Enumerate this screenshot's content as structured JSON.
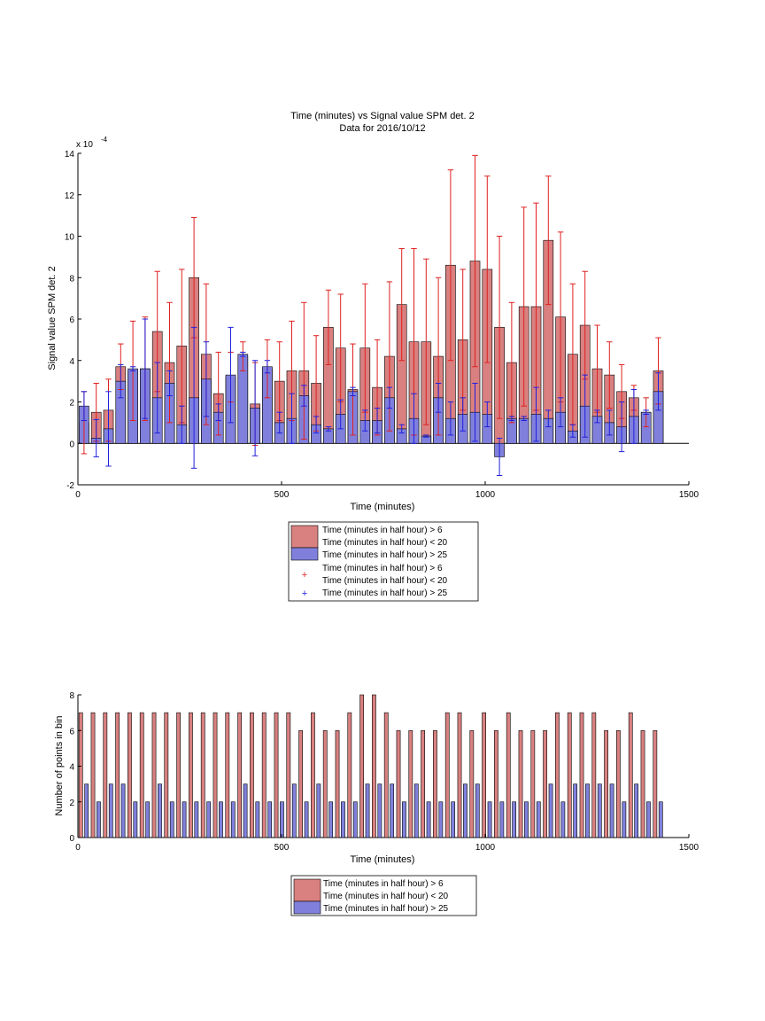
{
  "colors": {
    "red_bar": "#d98080",
    "blue_bar": "#8080dc",
    "red_err": "#e02020",
    "blue_err": "#2020e0"
  },
  "chart_data": [
    {
      "type": "bar",
      "title": "Time (minutes) vs Signal value SPM det. 2",
      "subtitle": "Data for 2016/10/12",
      "xlabel": "Time (minutes)",
      "ylabel": "Signal value SPM det. 2",
      "exponent_label": "x 10",
      "exponent_power": "-4",
      "xlim": [
        0,
        1500
      ],
      "ylim": [
        -2,
        14
      ],
      "x_ticks": [
        0,
        500,
        1000,
        1500
      ],
      "y_ticks": [
        -2,
        0,
        2,
        4,
        6,
        8,
        10,
        12,
        14
      ],
      "legend_placement": "below",
      "legend": [
        "Time (minutes in half hour) > 6",
        "Time (minutes in half hour) < 20",
        "Time (minutes in half hour) > 25",
        "Time (minutes in half hour) > 6",
        "Time (minutes in half hour) < 20",
        "Time (minutes in half hour) > 25"
      ],
      "x": [
        15,
        45,
        75,
        105,
        135,
        165,
        195,
        225,
        255,
        285,
        315,
        345,
        375,
        405,
        435,
        465,
        495,
        525,
        555,
        585,
        615,
        645,
        675,
        705,
        735,
        765,
        795,
        825,
        855,
        885,
        915,
        945,
        975,
        1005,
        1035,
        1065,
        1095,
        1125,
        1155,
        1185,
        1215,
        1245,
        1275,
        1305,
        1335,
        1365,
        1395,
        1425
      ],
      "series": [
        {
          "name": "Time (minutes in half hour) > 6 Time (minutes in half hour) < 20",
          "values": [
            1.0,
            1.5,
            1.6,
            3.7,
            3.5,
            3.6,
            5.4,
            3.9,
            4.7,
            8.0,
            4.3,
            2.4,
            3.2,
            4.2,
            1.9,
            3.6,
            3.0,
            3.5,
            3.5,
            2.9,
            5.6,
            4.6,
            2.6,
            4.6,
            2.7,
            4.2,
            6.7,
            4.9,
            4.9,
            4.2,
            8.6,
            5.0,
            8.8,
            8.4,
            5.6,
            3.9,
            6.6,
            6.6,
            9.8,
            6.1,
            4.3,
            5.7,
            3.6,
            3.3,
            2.5,
            2.2,
            1.5,
            3.5
          ],
          "errors": [
            1.5,
            1.4,
            1.5,
            1.1,
            2.4,
            2.5,
            2.9,
            2.9,
            3.7,
            2.9,
            3.4,
            2.0,
            1.2,
            0.7,
            2.0,
            1.4,
            1.9,
            2.4,
            3.3,
            2.3,
            1.8,
            2.6,
            2.2,
            3.1,
            2.3,
            3.6,
            2.7,
            4.5,
            4.0,
            3.8,
            4.6,
            3.4,
            5.1,
            4.5,
            4.4,
            2.9,
            4.8,
            5.0,
            3.1,
            4.1,
            3.4,
            2.6,
            2.1,
            1.6,
            1.3,
            0.6,
            0.7,
            1.6
          ]
        },
        {
          "name": "Time (minutes in half hour) > 25",
          "values": [
            1.8,
            0.25,
            0.7,
            3.0,
            3.6,
            3.6,
            2.2,
            2.9,
            0.9,
            2.2,
            3.1,
            1.5,
            3.3,
            4.3,
            1.7,
            3.7,
            1.0,
            1.2,
            2.3,
            0.9,
            0.7,
            1.4,
            2.5,
            1.1,
            1.1,
            2.2,
            0.7,
            1.2,
            0.35,
            2.2,
            1.2,
            1.4,
            1.5,
            1.4,
            -0.65,
            1.2,
            1.2,
            1.4,
            1.2,
            1.5,
            0.6,
            1.8,
            1.3,
            1.0,
            0.8,
            1.3,
            1.5,
            2.5
          ],
          "errors": [
            0.7,
            0.9,
            1.8,
            0.8,
            0.1,
            2.4,
            1.7,
            0.6,
            0.9,
            3.4,
            1.8,
            0.4,
            2.3,
            0.1,
            2.3,
            0.3,
            0.5,
            1.2,
            0.5,
            0.4,
            0.1,
            0.7,
            0.2,
            0.5,
            0.6,
            0.5,
            0.2,
            1.2,
            0.05,
            0.7,
            0.8,
            0.8,
            1.4,
            0.6,
            0.9,
            0.1,
            0.1,
            1.3,
            0.4,
            0.7,
            0.3,
            1.5,
            0.3,
            0.6,
            1.2,
            1.3,
            0.1,
            0.9
          ]
        }
      ]
    },
    {
      "type": "bar",
      "xlabel": "Time (minutes)",
      "ylabel": "Number of points in bin",
      "xlim": [
        0,
        1500
      ],
      "ylim": [
        0,
        8
      ],
      "x_ticks": [
        0,
        500,
        1000,
        1500
      ],
      "y_ticks": [
        0,
        2,
        4,
        6,
        8
      ],
      "legend_placement": "below",
      "legend": [
        "Time (minutes in half hour) > 6",
        "Time (minutes in half hour) < 20",
        "Time (minutes in half hour) > 25"
      ],
      "x": [
        15,
        45,
        75,
        105,
        135,
        165,
        195,
        225,
        255,
        285,
        315,
        345,
        375,
        405,
        435,
        465,
        495,
        525,
        555,
        585,
        615,
        645,
        675,
        705,
        735,
        765,
        795,
        825,
        855,
        885,
        915,
        945,
        975,
        1005,
        1035,
        1065,
        1095,
        1125,
        1155,
        1185,
        1215,
        1245,
        1275,
        1305,
        1335,
        1365,
        1395,
        1425
      ],
      "series": [
        {
          "name": "Time (minutes in half hour) > 6 Time (minutes in half hour) < 20",
          "values": [
            7,
            7,
            7,
            7,
            7,
            7,
            7,
            7,
            7,
            7,
            7,
            7,
            7,
            7,
            7,
            7,
            7,
            7,
            6,
            7,
            6,
            6,
            7,
            8,
            8,
            7,
            6,
            6,
            6,
            6,
            7,
            7,
            6,
            7,
            6,
            7,
            6,
            6,
            6,
            7,
            7,
            7,
            7,
            6,
            6,
            7,
            6,
            6
          ]
        },
        {
          "name": "Time (minutes in half hour) > 25",
          "values": [
            3,
            2,
            3,
            3,
            2,
            2,
            3,
            2,
            2,
            2,
            2,
            2,
            2,
            3,
            2,
            2,
            2,
            3,
            2,
            3,
            2,
            2,
            2,
            3,
            3,
            3,
            2,
            3,
            2,
            2,
            2,
            3,
            3,
            2,
            2,
            2,
            2,
            2,
            3,
            2,
            3,
            3,
            3,
            3,
            2,
            3,
            2,
            2
          ]
        }
      ]
    }
  ]
}
